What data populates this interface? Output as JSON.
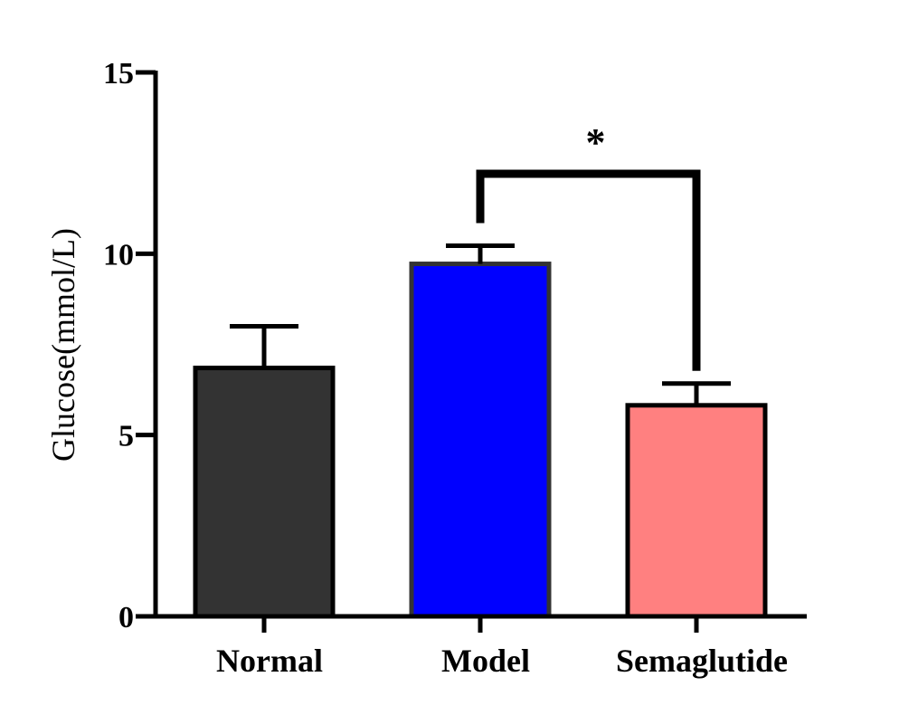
{
  "chart_data": {
    "type": "bar",
    "categories": [
      "Normal",
      "Model",
      "Semaglutide"
    ],
    "values": [
      6.85,
      9.72,
      5.82
    ],
    "errors": [
      1.15,
      0.5,
      0.6
    ],
    "colors": [
      "#333333",
      "#0000ff",
      "#ff8080"
    ],
    "bar_edge_colors": [
      "#000000",
      "#333333",
      "#000000"
    ],
    "title": "",
    "xlabel": "",
    "ylabel": "Glucose(mmol/L)",
    "ylim": [
      0,
      15
    ],
    "yticks": [
      "0",
      "5",
      "10",
      "15"
    ],
    "ytick_values": [
      0,
      5,
      10,
      15
    ],
    "grid": false,
    "legend": "none",
    "annotations": [
      {
        "type": "significance-bracket",
        "from": "Model",
        "to": "Semaglutide",
        "label": "*"
      }
    ]
  }
}
